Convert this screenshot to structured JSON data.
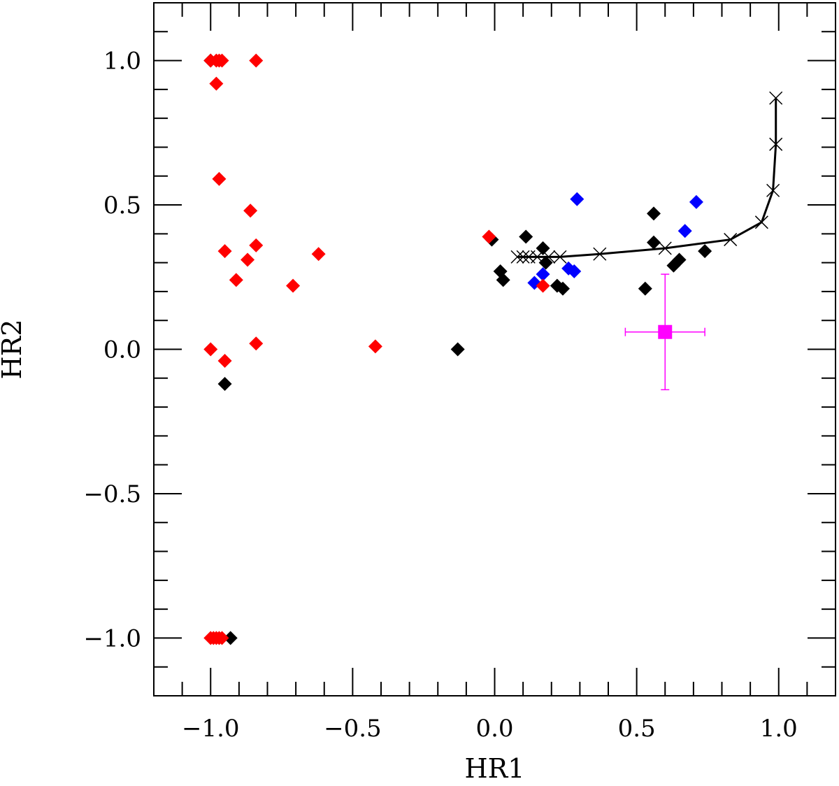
{
  "chart_data": {
    "type": "scatter",
    "title": "",
    "xlabel": "HR1",
    "ylabel": "HR2",
    "xlim": [
      -1.2,
      1.2
    ],
    "ylim": [
      -1.2,
      1.2
    ],
    "x_ticks": [
      -1.0,
      -0.5,
      0.0,
      0.5,
      1.0
    ],
    "x_tick_labels": [
      "−1.0",
      "−0.5",
      "0.0",
      "0.5",
      "1.0"
    ],
    "y_ticks": [
      -1.0,
      -0.5,
      0.0,
      0.5,
      1.0
    ],
    "y_tick_labels": [
      "−1.0",
      "−0.5",
      "0.0",
      "0.5",
      "1.0"
    ],
    "x_minor_step": 0.1,
    "y_minor_step": 0.1,
    "grid": false,
    "series": [
      {
        "marker": "diamond",
        "color": "#000000",
        "points": [
          [
            -1.0,
            1.0
          ],
          [
            -0.95,
            -0.12
          ],
          [
            -0.93,
            -1.0
          ],
          [
            -0.13,
            0.0
          ],
          [
            -0.01,
            0.38
          ],
          [
            0.02,
            0.27
          ],
          [
            0.03,
            0.24
          ],
          [
            0.11,
            0.39
          ],
          [
            0.17,
            0.35
          ],
          [
            0.18,
            0.3
          ],
          [
            0.22,
            0.22
          ],
          [
            0.24,
            0.21
          ],
          [
            0.53,
            0.21
          ],
          [
            0.56,
            0.47
          ],
          [
            0.56,
            0.37
          ],
          [
            0.63,
            0.29
          ],
          [
            0.65,
            0.31
          ],
          [
            0.74,
            0.34
          ]
        ]
      },
      {
        "marker": "diamond",
        "color": "#0000ff",
        "points": [
          [
            0.14,
            0.23
          ],
          [
            0.17,
            0.26
          ],
          [
            0.26,
            0.28
          ],
          [
            0.28,
            0.27
          ],
          [
            0.29,
            0.52
          ],
          [
            0.67,
            0.41
          ],
          [
            0.71,
            0.51
          ]
        ]
      },
      {
        "marker": "diamond",
        "color": "#ff0000",
        "points": [
          [
            -1.0,
            1.0
          ],
          [
            -0.98,
            1.0
          ],
          [
            -0.97,
            1.0
          ],
          [
            -0.96,
            1.0
          ],
          [
            -0.84,
            1.0
          ],
          [
            -0.98,
            0.92
          ],
          [
            -0.97,
            0.59
          ],
          [
            -0.86,
            0.48
          ],
          [
            -0.84,
            0.36
          ],
          [
            -0.95,
            0.34
          ],
          [
            -0.87,
            0.31
          ],
          [
            -0.62,
            0.33
          ],
          [
            -0.91,
            0.24
          ],
          [
            -0.71,
            0.22
          ],
          [
            -1.0,
            0.0
          ],
          [
            -0.84,
            0.02
          ],
          [
            -0.95,
            -0.04
          ],
          [
            -0.42,
            0.01
          ],
          [
            -0.02,
            0.39
          ],
          [
            0.17,
            0.22
          ],
          [
            -1.0,
            -1.0
          ],
          [
            -0.99,
            -1.0
          ],
          [
            -0.98,
            -1.0
          ],
          [
            -0.97,
            -1.0
          ],
          [
            -0.96,
            -1.0
          ]
        ]
      },
      {
        "marker": "square",
        "color": "#ff00ff",
        "points": [
          [
            0.6,
            0.06
          ]
        ],
        "xerr": 0.14,
        "yerr": 0.2
      }
    ],
    "model_curve": {
      "color": "#000000",
      "marker": "x",
      "points": [
        [
          0.08,
          0.32
        ],
        [
          0.1,
          0.32
        ],
        [
          0.12,
          0.32
        ],
        [
          0.15,
          0.32
        ],
        [
          0.19,
          0.32
        ],
        [
          0.23,
          0.32
        ],
        [
          0.37,
          0.33
        ],
        [
          0.6,
          0.35
        ],
        [
          0.83,
          0.38
        ],
        [
          0.94,
          0.44
        ],
        [
          0.98,
          0.55
        ],
        [
          0.99,
          0.71
        ],
        [
          0.99,
          0.87
        ]
      ]
    }
  }
}
